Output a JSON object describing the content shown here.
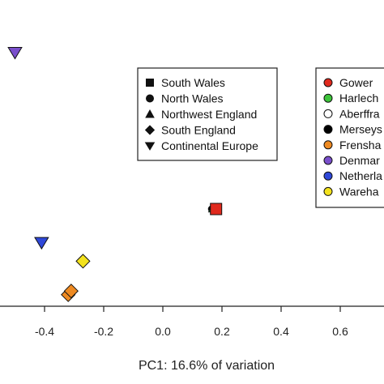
{
  "chart_data": {
    "type": "scatter",
    "xlabel": "PC1: 16.6% of variation",
    "ylabel": "",
    "xlim": [
      -0.5,
      0.77
    ],
    "x_ticks": [
      -0.4,
      -0.2,
      0.0,
      0.2,
      0.4,
      0.6
    ],
    "x_tick_labels": [
      "-0.4",
      "-0.2",
      "0.0",
      "0.2",
      "0.4",
      "0.6"
    ],
    "grid": false,
    "shape_legend": {
      "title": "",
      "items": [
        {
          "label": "South Wales",
          "marker": "square"
        },
        {
          "label": "North Wales",
          "marker": "circle"
        },
        {
          "label": "Northwest England",
          "marker": "triangle-up"
        },
        {
          "label": "South England",
          "marker": "diamond"
        },
        {
          "label": "Continental Europe",
          "marker": "triangle-down"
        }
      ]
    },
    "color_legend": {
      "items": [
        {
          "label": "Gower",
          "color": "#e0291d"
        },
        {
          "label": "Harlech",
          "color": "#3dc43a"
        },
        {
          "label": "Aberffra",
          "color": "#ffffff"
        },
        {
          "label": "Merseys",
          "color": "#000000"
        },
        {
          "label": "Frensha",
          "color": "#ee8a22"
        },
        {
          "label": "Denmar",
          "color": "#7a4fcc"
        },
        {
          "label": "Netherla",
          "color": "#2f48d9"
        },
        {
          "label": "Wareha",
          "color": "#f3e21d"
        }
      ]
    },
    "points": [
      {
        "x": -0.5,
        "y": 0.36,
        "marker": "triangle-down",
        "color": "#7a4fcc"
      },
      {
        "x": -0.41,
        "y": -0.15,
        "marker": "triangle-down",
        "color": "#2f48d9"
      },
      {
        "x": -0.27,
        "y": -0.2,
        "marker": "diamond",
        "color": "#f3e21d"
      },
      {
        "x": -0.32,
        "y": -0.29,
        "marker": "diamond",
        "color": "#ee8a22"
      },
      {
        "x": -0.31,
        "y": -0.28,
        "marker": "diamond",
        "color": "#ee8a22"
      },
      {
        "x": 0.165,
        "y": -0.06,
        "marker": "circle",
        "color": "#000000"
      },
      {
        "x": 0.167,
        "y": -0.06,
        "marker": "triangle-up",
        "color": "#3dc43a"
      },
      {
        "x": 0.18,
        "y": -0.06,
        "marker": "square",
        "color": "#e0291d"
      }
    ]
  }
}
